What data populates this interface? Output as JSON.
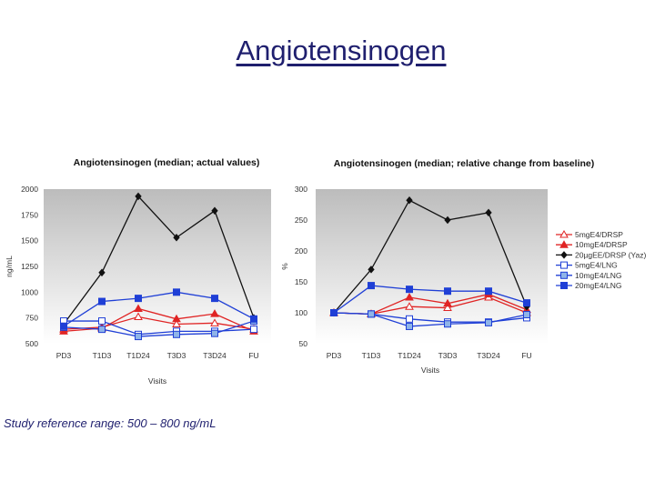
{
  "page": {
    "title": "Angiotensinogen",
    "note": "Study reference range: 500 – 800 ng/mL"
  },
  "colors": {
    "black": "#111111",
    "red": "#e02424",
    "blue_dark": "#1f3fd6",
    "blue_light": "#8fb4e8",
    "plot_bg_top": "#bcbcbc",
    "plot_bg_bottom": "#ffffff"
  },
  "chart_data": [
    {
      "type": "line",
      "title": "Angiotensinogen (median; actual values)",
      "xlabel": "Visits",
      "ylabel": "ng/mL",
      "ylim": [
        500,
        2000
      ],
      "yticks": [
        500,
        750,
        1000,
        1250,
        1500,
        1750,
        2000
      ],
      "categories": [
        "PD3",
        "T1D3",
        "T1D24",
        "T3D3",
        "T3D24",
        "FU"
      ],
      "series": [
        {
          "name": "5mgE4/DRSP",
          "style": "red-open-triangle",
          "values": [
            640,
            660,
            760,
            690,
            700,
            640
          ]
        },
        {
          "name": "10mgE4/DRSP",
          "style": "red-filled-triangle",
          "values": [
            620,
            650,
            840,
            740,
            790,
            620
          ]
        },
        {
          "name": "20µgEE/DRSP",
          "style": "black-diamond",
          "values": [
            690,
            1190,
            1930,
            1530,
            1790,
            750
          ]
        },
        {
          "name": "5mgE4/LNG",
          "style": "blue-open-square",
          "values": [
            720,
            720,
            590,
            620,
            620,
            640
          ]
        },
        {
          "name": "10mgE4/LNG",
          "style": "lightblue-square",
          "values": [
            660,
            640,
            570,
            590,
            600,
            720
          ]
        },
        {
          "name": "20mgE4/LNG",
          "style": "blue-filled-square",
          "values": [
            670,
            910,
            940,
            1000,
            940,
            740
          ]
        }
      ]
    },
    {
      "type": "line",
      "title": "Angiotensinogen (median; relative change from baseline)",
      "xlabel": "Visits",
      "ylabel": "%",
      "ylim": [
        50,
        300
      ],
      "yticks": [
        50,
        100,
        150,
        200,
        250,
        300
      ],
      "categories": [
        "PD3",
        "T1D3",
        "T1D24",
        "T3D3",
        "T3D24",
        "FU"
      ],
      "legend_position": "right",
      "legend": [
        "5mgE4/DRSP",
        "10mgE4/DRSP",
        "20µgEE/DRSP (Yaz)",
        "5mgE4/LNG",
        "10mgE4/LNG",
        "20mgE4/LNG"
      ],
      "series": [
        {
          "name": "5mgE4/DRSP",
          "style": "red-open-triangle",
          "values": [
            100,
            98,
            110,
            108,
            125,
            100
          ]
        },
        {
          "name": "10mgE4/DRSP",
          "style": "red-filled-triangle",
          "values": [
            100,
            98,
            125,
            115,
            130,
            105
          ]
        },
        {
          "name": "20µgEE/DRSP (Yaz)",
          "style": "black-diamond",
          "values": [
            100,
            170,
            282,
            250,
            262,
            110
          ]
        },
        {
          "name": "5mgE4/LNG",
          "style": "blue-open-square",
          "values": [
            100,
            98,
            90,
            85,
            85,
            92
          ]
        },
        {
          "name": "10mgE4/LNG",
          "style": "lightblue-square",
          "values": [
            100,
            98,
            78,
            82,
            84,
            97
          ]
        },
        {
          "name": "20mgE4/LNG",
          "style": "blue-filled-square",
          "values": [
            100,
            144,
            138,
            135,
            135,
            116
          ]
        }
      ]
    }
  ]
}
